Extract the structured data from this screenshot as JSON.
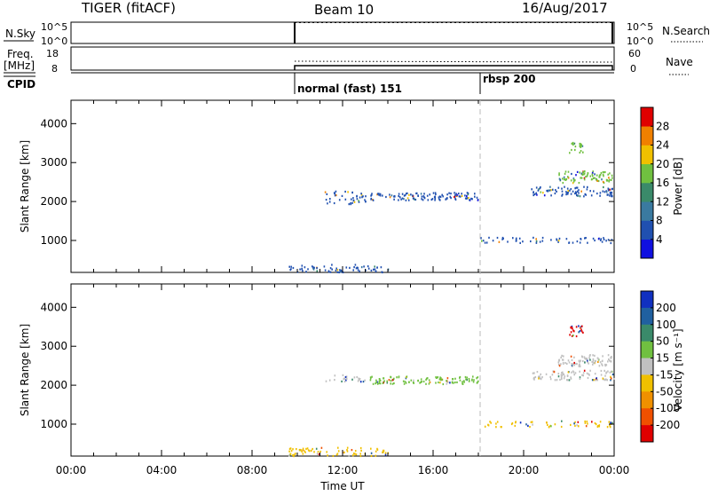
{
  "header": {
    "radar_title": "TIGER (fitACF)",
    "beam_label": "Beam 10",
    "date_label": "16/Aug/2017"
  },
  "top_panels": {
    "nsky_label": "N.Sky",
    "nsky_ticks": [
      "10^5",
      "10^0"
    ],
    "nsearch_ticks": [
      "10^5",
      "10^0"
    ],
    "nsearch_label": "N.Search",
    "freq_label": "Freq.",
    "freq_unit": "[MHz]",
    "freq_ticks": [
      "18",
      "8"
    ],
    "nave_ticks": [
      "60",
      "0"
    ],
    "nave_label": "Nave",
    "cpid_label": "CPID",
    "cpid_modes": [
      {
        "label": "normal (fast) 151",
        "start_hour": 9.5
      },
      {
        "label": "rbsp 200",
        "start_hour": 18.0
      }
    ]
  },
  "chart_data": [
    {
      "type": "scatter",
      "name": "power-panel",
      "ylabel": "Slant Range [km]",
      "ylim": [
        180,
        4600
      ],
      "xlim": [
        0,
        24
      ],
      "yticks": [
        "1000",
        "2000",
        "3000",
        "4000"
      ],
      "colorbar": {
        "label": "Power [dB]",
        "ticks": [
          "4",
          "8",
          "12",
          "16",
          "20",
          "24",
          "28"
        ],
        "colors": [
          "#1010e0",
          "#2050b0",
          "#3a7aa0",
          "#3a8a6a",
          "#70c040",
          "#f0c000",
          "#f08000",
          "#e00000"
        ]
      },
      "echo_regions": [
        {
          "x": [
            9.6,
            14.0
          ],
          "y": [
            200,
            400
          ],
          "color": "#2050b0",
          "density": 0.35
        },
        {
          "x": [
            11.2,
            13.0
          ],
          "y": [
            1950,
            2300
          ],
          "color": "#2050b0",
          "density": 0.3
        },
        {
          "x": [
            13.2,
            18.0
          ],
          "y": [
            2050,
            2250
          ],
          "color": "#2050b0",
          "density": 0.55
        },
        {
          "x": [
            18.0,
            24.0
          ],
          "y": [
            950,
            1100
          ],
          "color": "#2050b0",
          "density": 0.3
        },
        {
          "x": [
            20.3,
            24.0
          ],
          "y": [
            2150,
            2400
          ],
          "color": "#2050b0",
          "density": 0.45
        },
        {
          "x": [
            21.5,
            23.9
          ],
          "y": [
            2500,
            2800
          ],
          "color": "#70c040",
          "density": 0.55
        },
        {
          "x": [
            22.0,
            22.6
          ],
          "y": [
            3250,
            3550
          ],
          "color": "#70c040",
          "density": 0.5
        }
      ]
    },
    {
      "type": "scatter",
      "name": "velocity-panel",
      "ylabel": "Slant Range [km]",
      "xlabel": "Time UT",
      "ylim": [
        180,
        4600
      ],
      "xlim": [
        0,
        24
      ],
      "yticks": [
        "1000",
        "2000",
        "3000",
        "4000"
      ],
      "xticks": [
        "00:00",
        "04:00",
        "08:00",
        "12:00",
        "16:00",
        "20:00",
        "00:00"
      ],
      "colorbar": {
        "label": "Velocity [m s⁻¹]",
        "ticks": [
          "200",
          "100",
          "50",
          "15",
          "-15",
          "-50",
          "-100",
          "-200"
        ],
        "colors": [
          "#1030c0",
          "#2060a0",
          "#3a8a6a",
          "#70c040",
          "#c0c0c0",
          "#f0c000",
          "#f09000",
          "#f05000",
          "#e00000"
        ]
      },
      "echo_regions": [
        {
          "x": [
            9.6,
            14.0
          ],
          "y": [
            200,
            420
          ],
          "color": "#f0c000",
          "density": 0.35
        },
        {
          "x": [
            11.2,
            13.0
          ],
          "y": [
            2100,
            2300
          ],
          "color": "#c0c0c0",
          "density": 0.3
        },
        {
          "x": [
            13.2,
            18.0
          ],
          "y": [
            2050,
            2250
          ],
          "color": "#70c040",
          "density": 0.55
        },
        {
          "x": [
            18.0,
            24.0
          ],
          "y": [
            950,
            1100
          ],
          "color": "#f0c000",
          "density": 0.3
        },
        {
          "x": [
            20.3,
            24.0
          ],
          "y": [
            2150,
            2400
          ],
          "color": "#c0c0c0",
          "density": 0.45
        },
        {
          "x": [
            21.5,
            23.9
          ],
          "y": [
            2500,
            2800
          ],
          "color": "#c0c0c0",
          "density": 0.55
        },
        {
          "x": [
            22.0,
            22.6
          ],
          "y": [
            3250,
            3550
          ],
          "color": "#e00000",
          "density": 0.55
        }
      ]
    }
  ]
}
